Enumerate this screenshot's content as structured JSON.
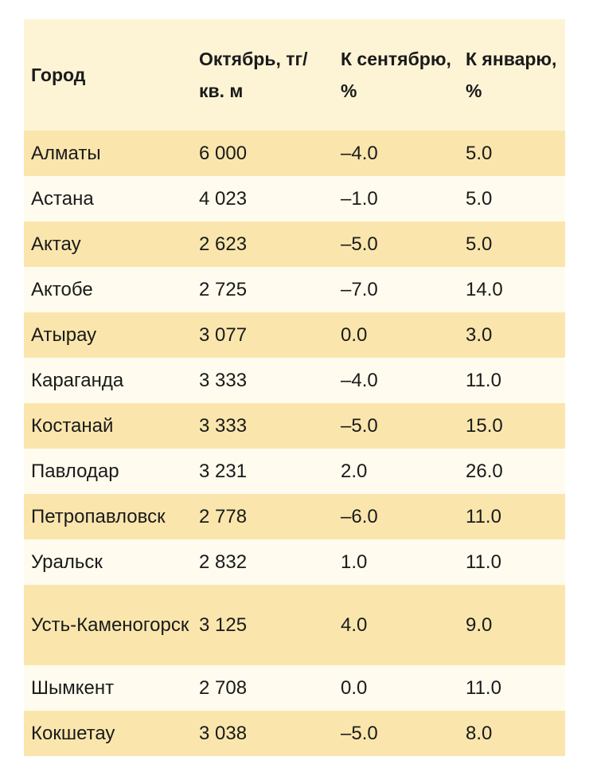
{
  "table": {
    "headers": [
      "Город",
      "Октябрь, тг/ кв. м",
      "К сентябрю, %",
      "К январю, %"
    ],
    "rows": [
      [
        "Алматы",
        "6 000",
        "–4.0",
        "5.0"
      ],
      [
        "Астана",
        "4 023",
        "–1.0",
        "5.0"
      ],
      [
        "Актау",
        "2 623",
        "–5.0",
        "5.0"
      ],
      [
        "Актобе",
        "2 725",
        "–7.0",
        "14.0"
      ],
      [
        "Атырау",
        "3 077",
        "0.0",
        "3.0"
      ],
      [
        "Караганда",
        "3 333",
        "–4.0",
        "11.0"
      ],
      [
        "Костанай",
        "3 333",
        "–5.0",
        "15.0"
      ],
      [
        "Павлодар",
        "3 231",
        "2.0",
        "26.0"
      ],
      [
        "Петропавловск",
        "2 778",
        "–6.0",
        "11.0"
      ],
      [
        "Уральск",
        "2 832",
        "1.0",
        "11.0"
      ],
      [
        "Усть-Каменогорск",
        "3 125",
        "4.0",
        "9.0"
      ],
      [
        "Шымкент",
        "2 708",
        "0.0",
        "11.0"
      ],
      [
        "Кокшетау",
        "3 038",
        "–5.0",
        "8.0"
      ]
    ]
  },
  "colors": {
    "header_bg": "#fdf4d6",
    "row_dark": "#fae6ad",
    "row_light": "#fffbee"
  }
}
